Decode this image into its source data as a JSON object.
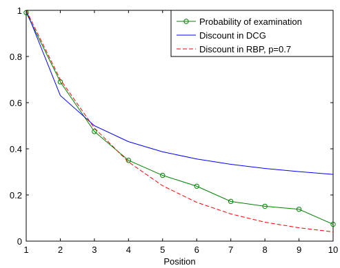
{
  "chart_data": {
    "type": "line",
    "xlabel": "Position",
    "ylabel": "",
    "xlim": [
      1,
      10
    ],
    "ylim": [
      0,
      1
    ],
    "x_ticks": [
      1,
      2,
      3,
      4,
      5,
      6,
      7,
      8,
      9,
      10
    ],
    "y_ticks": [
      0,
      0.2,
      0.4,
      0.6,
      0.8,
      1
    ],
    "x_tick_labels": [
      "1",
      "2",
      "3",
      "4",
      "5",
      "6",
      "7",
      "8",
      "9",
      "10"
    ],
    "y_tick_labels": [
      "0",
      "0.2",
      "0.4",
      "0.6",
      "0.8",
      "1"
    ],
    "grid": false,
    "legend_position": "top-right",
    "x": [
      1,
      2,
      3,
      4,
      5,
      6,
      7,
      8,
      9,
      10
    ],
    "series": [
      {
        "name": "Probability of examination",
        "color": "#008000",
        "line_style": "solid",
        "marker": "circle",
        "values": [
          0.99,
          0.69,
          0.475,
          0.35,
          0.285,
          0.238,
          0.172,
          0.151,
          0.138,
          0.073
        ]
      },
      {
        "name": "Discount in DCG",
        "color": "#0000ff",
        "line_style": "solid",
        "marker": "none",
        "values": [
          1.0,
          0.631,
          0.5,
          0.431,
          0.387,
          0.356,
          0.333,
          0.315,
          0.301,
          0.289
        ]
      },
      {
        "name": "Discount in RBP, p=0.7",
        "color": "#ff0000",
        "line_style": "dashed",
        "marker": "none",
        "values": [
          1.0,
          0.7,
          0.49,
          0.343,
          0.24,
          0.168,
          0.118,
          0.082,
          0.058,
          0.04
        ]
      }
    ]
  }
}
